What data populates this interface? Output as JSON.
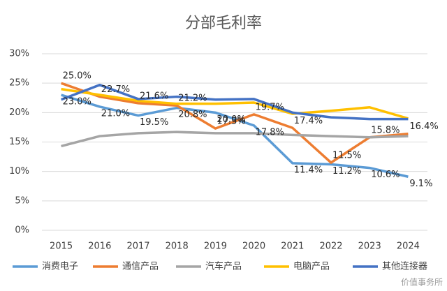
{
  "chart_data": {
    "type": "line",
    "title": "分部毛利率",
    "categories": [
      "2015",
      "2016",
      "2017",
      "2018",
      "2019",
      "2020",
      "2021",
      "2022",
      "2023",
      "2024"
    ],
    "ylim": [
      0,
      30
    ],
    "yticks": [
      {
        "value": 0,
        "label": "0%"
      },
      {
        "value": 5,
        "label": "5%"
      },
      {
        "value": 10,
        "label": "10%"
      },
      {
        "value": 15,
        "label": "15%"
      },
      {
        "value": 20,
        "label": "20%"
      },
      {
        "value": 25,
        "label": "25%"
      },
      {
        "value": 30,
        "label": "30%"
      }
    ],
    "grid": true,
    "legend": "bottom",
    "series": [
      {
        "name": "消费电子",
        "color": "#5b9bd5",
        "values": [
          23.0,
          21.0,
          19.5,
          20.8,
          20.0,
          17.8,
          11.4,
          11.2,
          10.6,
          9.1
        ],
        "value_labels": [
          "23.0%",
          "21.0%",
          "19.5%",
          "20.8%",
          "20.0%",
          "17.8%",
          "11.4%",
          "11.2%",
          "10.6%",
          "9.1%"
        ]
      },
      {
        "name": "通信产品",
        "color": "#ed7d31",
        "values": [
          25.0,
          22.7,
          21.6,
          21.2,
          17.3,
          19.7,
          17.4,
          11.5,
          15.8,
          16.4
        ],
        "value_labels": [
          "25.0%",
          "22.7%",
          "21.6%",
          "21.2%",
          "17.3%",
          "19.7%",
          "17.4%",
          "11.5%",
          "15.8%",
          "16.4%"
        ]
      },
      {
        "name": "汽车产品",
        "color": "#a5a5a5",
        "values": [
          14.3,
          16.0,
          16.5,
          16.7,
          16.5,
          16.5,
          16.2,
          16.0,
          15.8,
          16.0
        ]
      },
      {
        "name": "电脑产品",
        "color": "#ffc000",
        "values": [
          24.0,
          23.0,
          22.0,
          21.5,
          21.5,
          21.7,
          19.8,
          20.3,
          20.9,
          19.0
        ]
      },
      {
        "name": "其他连接器",
        "color": "#4472c4",
        "values": [
          22.2,
          24.7,
          22.3,
          22.7,
          22.2,
          22.3,
          20.0,
          19.2,
          18.9,
          18.9
        ]
      }
    ]
  },
  "watermark": "价值事务所"
}
